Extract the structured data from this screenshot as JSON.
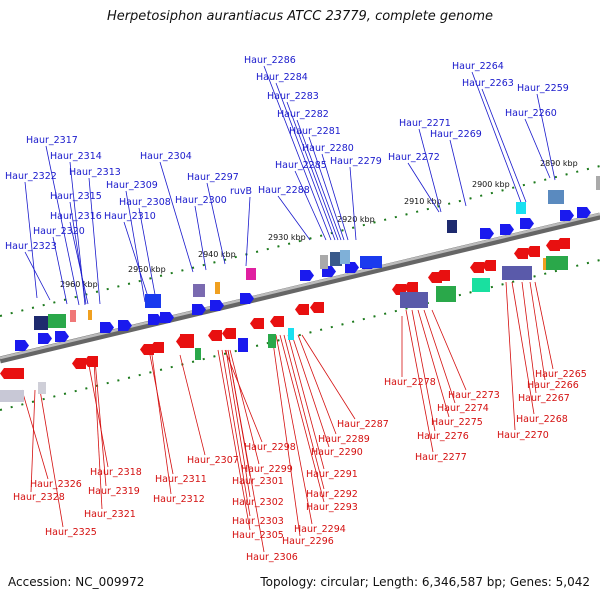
{
  "header": {
    "title": "Herpetosiphon aurantiacus ATCC 23779, complete genome"
  },
  "footer": {
    "accession": "Accession: NC_009972",
    "topology": "Topology: circular; Length: 6,346,587 bp; Genes: 5,042"
  },
  "colors": {
    "upper_genes": "#1a1acc",
    "lower_genes": "#d41010",
    "backbone": "#888888",
    "tick": "#1d7a1d"
  },
  "ticks": [
    "2960 kbp",
    "2950 kbp",
    "2940 kbp",
    "2930 kbp",
    "2920 kbp",
    "2910 kbp",
    "2900 kbp",
    "2890 kbp"
  ],
  "genes_upper": [
    "Haur_2286",
    "Haur_2284",
    "Haur_2283",
    "Haur_2282",
    "Haur_2281",
    "Haur_2280",
    "Haur_2285",
    "Haur_2279",
    "Haur_2288",
    "Haur_2317",
    "Haur_2314",
    "Haur_2313",
    "Haur_2322",
    "Haur_2315",
    "Haur_2316",
    "Haur_2320",
    "Haur_2323",
    "Haur_2309",
    "Haur_2308",
    "Haur_2310",
    "Haur_2304",
    "Haur_2297",
    "Haur_2300",
    "ruvB",
    "Haur_2264",
    "Haur_2263",
    "Haur_2259",
    "Haur_2260",
    "Haur_2271",
    "Haur_2269",
    "Haur_2272"
  ],
  "genes_lower": [
    "Haur_2326",
    "Haur_2328",
    "Haur_2325",
    "Haur_2318",
    "Haur_2319",
    "Haur_2321",
    "Haur_2307",
    "Haur_2311",
    "Haur_2312",
    "Haur_2298",
    "Haur_2299",
    "Haur_2301",
    "Haur_2302",
    "Haur_2303",
    "Haur_2305",
    "Haur_2306",
    "Haur_2287",
    "Haur_2289",
    "Haur_2290",
    "Haur_2291",
    "Haur_2292",
    "Haur_2293",
    "Haur_2294",
    "Haur_2296",
    "Haur_2278",
    "Haur_2273",
    "Haur_2274",
    "Haur_2275",
    "Haur_2276",
    "Haur_2277",
    "Haur_2265",
    "Haur_2266",
    "Haur_2267",
    "Haur_2268",
    "Haur_2270"
  ]
}
